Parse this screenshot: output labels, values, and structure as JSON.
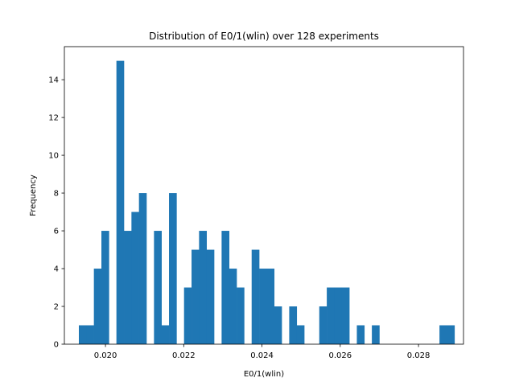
{
  "chart_data": {
    "type": "bar",
    "title": "Distribution of E0/1(wlin) over 128 experiments",
    "xlabel": "E0/1(wlin)",
    "ylabel": "Frequency",
    "xlim": [
      0.01895,
      0.02915
    ],
    "ylim": [
      0,
      15.75
    ],
    "grid": false,
    "legend": "none",
    "bar_color": "#1f77b4",
    "x_ticks": [
      {
        "value": 0.02,
        "label": "0.020"
      },
      {
        "value": 0.022,
        "label": "0.022"
      },
      {
        "value": 0.024,
        "label": "0.024"
      },
      {
        "value": 0.026,
        "label": "0.026"
      },
      {
        "value": 0.028,
        "label": "0.028"
      }
    ],
    "y_ticks": [
      {
        "value": 0,
        "label": "0"
      },
      {
        "value": 2,
        "label": "2"
      },
      {
        "value": 4,
        "label": "4"
      },
      {
        "value": 6,
        "label": "6"
      },
      {
        "value": 8,
        "label": "8"
      },
      {
        "value": 10,
        "label": "10"
      },
      {
        "value": 12,
        "label": "12"
      },
      {
        "value": 14,
        "label": "14"
      }
    ],
    "bin_start": 0.01932,
    "bin_width": 0.000192,
    "counts": [
      1,
      1,
      4,
      6,
      0,
      15,
      6,
      7,
      8,
      0,
      6,
      1,
      8,
      0,
      3,
      5,
      6,
      5,
      0,
      6,
      4,
      3,
      0,
      5,
      4,
      4,
      2,
      0,
      2,
      1,
      0,
      0,
      2,
      3,
      3,
      3,
      0,
      1,
      0,
      1,
      0,
      0,
      0,
      0,
      0,
      0,
      0,
      0,
      1,
      1
    ]
  }
}
